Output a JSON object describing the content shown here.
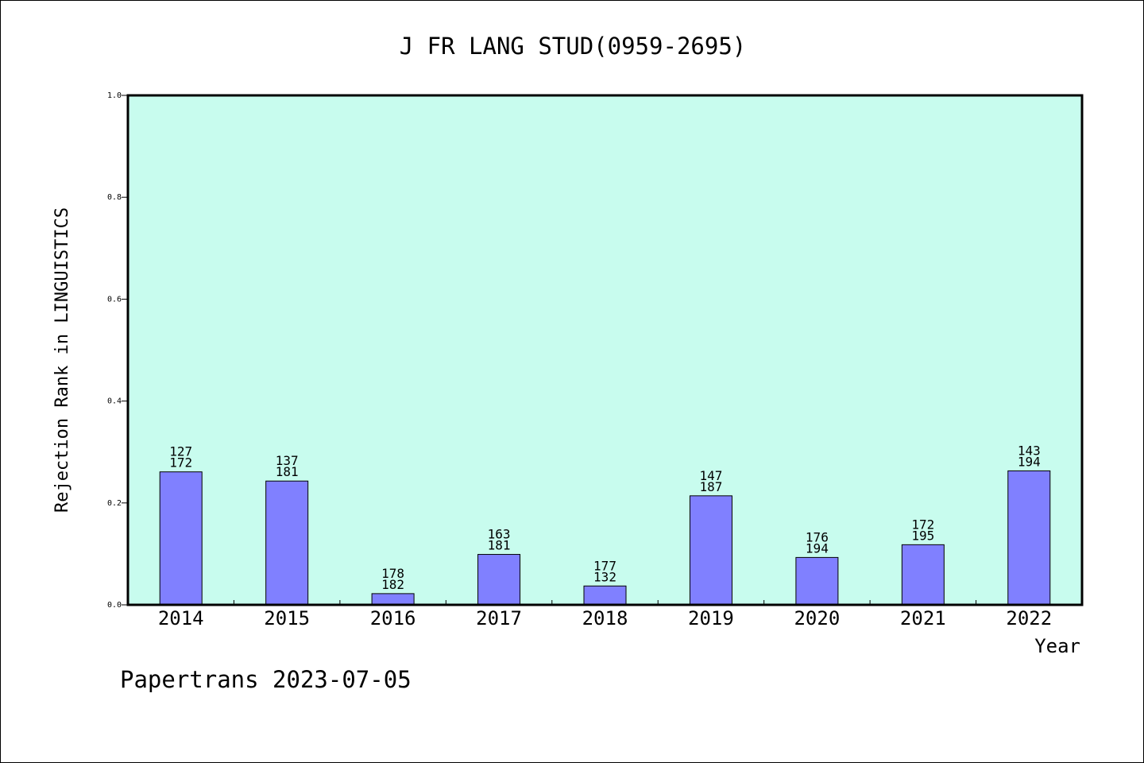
{
  "chart_data": {
    "type": "bar",
    "title": "J FR LANG STUD(0959-2695)",
    "xlabel": "Year",
    "ylabel": "Rejection Rank in LINGUISTICS",
    "ylim": [
      0,
      1.0
    ],
    "yticks": [
      "0.0",
      "0.2",
      "0.4",
      "0.6",
      "0.8",
      "1.0"
    ],
    "categories": [
      "2014",
      "2015",
      "2016",
      "2017",
      "2018",
      "2019",
      "2020",
      "2021",
      "2022"
    ],
    "values": [
      0.261,
      0.243,
      0.022,
      0.099,
      0.037,
      0.214,
      0.093,
      0.118,
      0.263
    ],
    "labels_top": [
      "127",
      "137",
      "178",
      "163",
      "177",
      "147",
      "176",
      "172",
      "143"
    ],
    "labels_bottom": [
      "172",
      "181",
      "182",
      "181",
      "132",
      "187",
      "194",
      "195",
      "194"
    ],
    "grid": false,
    "colors": {
      "plot_bg": "#c8fcee",
      "bar": "#8080ff"
    }
  },
  "footer": "Papertrans 2023-07-05"
}
